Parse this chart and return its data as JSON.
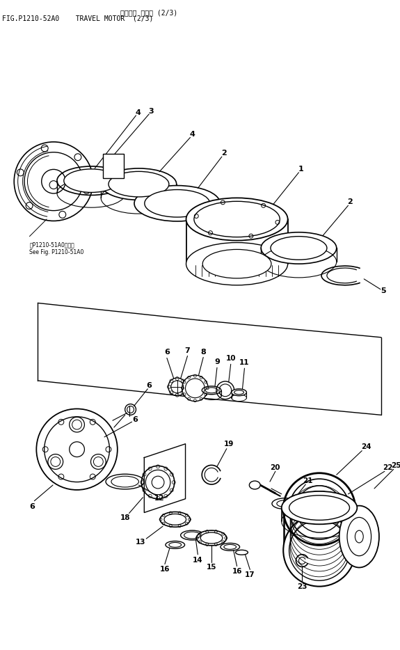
{
  "title_jp": "ソウコウ モータ (2/3)",
  "title_en": "FIG.P1210-52A0    TRAVEL MOTOR  (2/3)",
  "ref_text_jp": "第P1210-51A0図参照",
  "ref_text_en": "See Fig. P1210-51A0",
  "bg_color": "#ffffff",
  "line_color": "#000000",
  "text_color": "#000000"
}
